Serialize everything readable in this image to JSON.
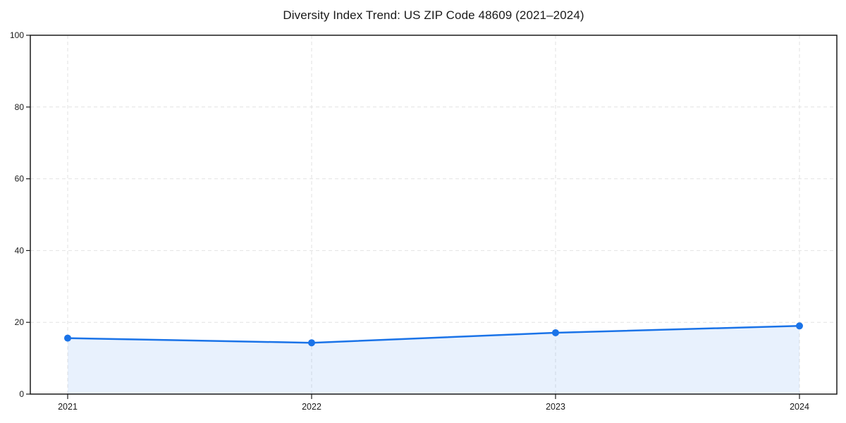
{
  "page": {
    "background": "#ffffff"
  },
  "chart_data": {
    "type": "line",
    "title": "Diversity Index Trend: US ZIP Code 48609 (2021–2024)",
    "x": [
      "2021",
      "2022",
      "2023",
      "2024"
    ],
    "series": [
      {
        "name": "Diversity Index",
        "values": [
          15.6,
          14.3,
          17.1,
          19.0
        ]
      }
    ],
    "xlabel": "",
    "ylabel": "",
    "ylim": [
      0,
      100
    ],
    "yticks": [
      0,
      20,
      40,
      60,
      80,
      100
    ],
    "grid": true,
    "grid_style": "dashed",
    "legend_position": "none",
    "line_color": "#1a73e8",
    "marker": "circle",
    "marker_color": "#1a73e8",
    "fill_color": "#1a73e8",
    "fill_opacity": 0.1,
    "grid_color": "#e2e2e2",
    "axis_color": "#1a1a1a",
    "background_color": "#ffffff"
  }
}
